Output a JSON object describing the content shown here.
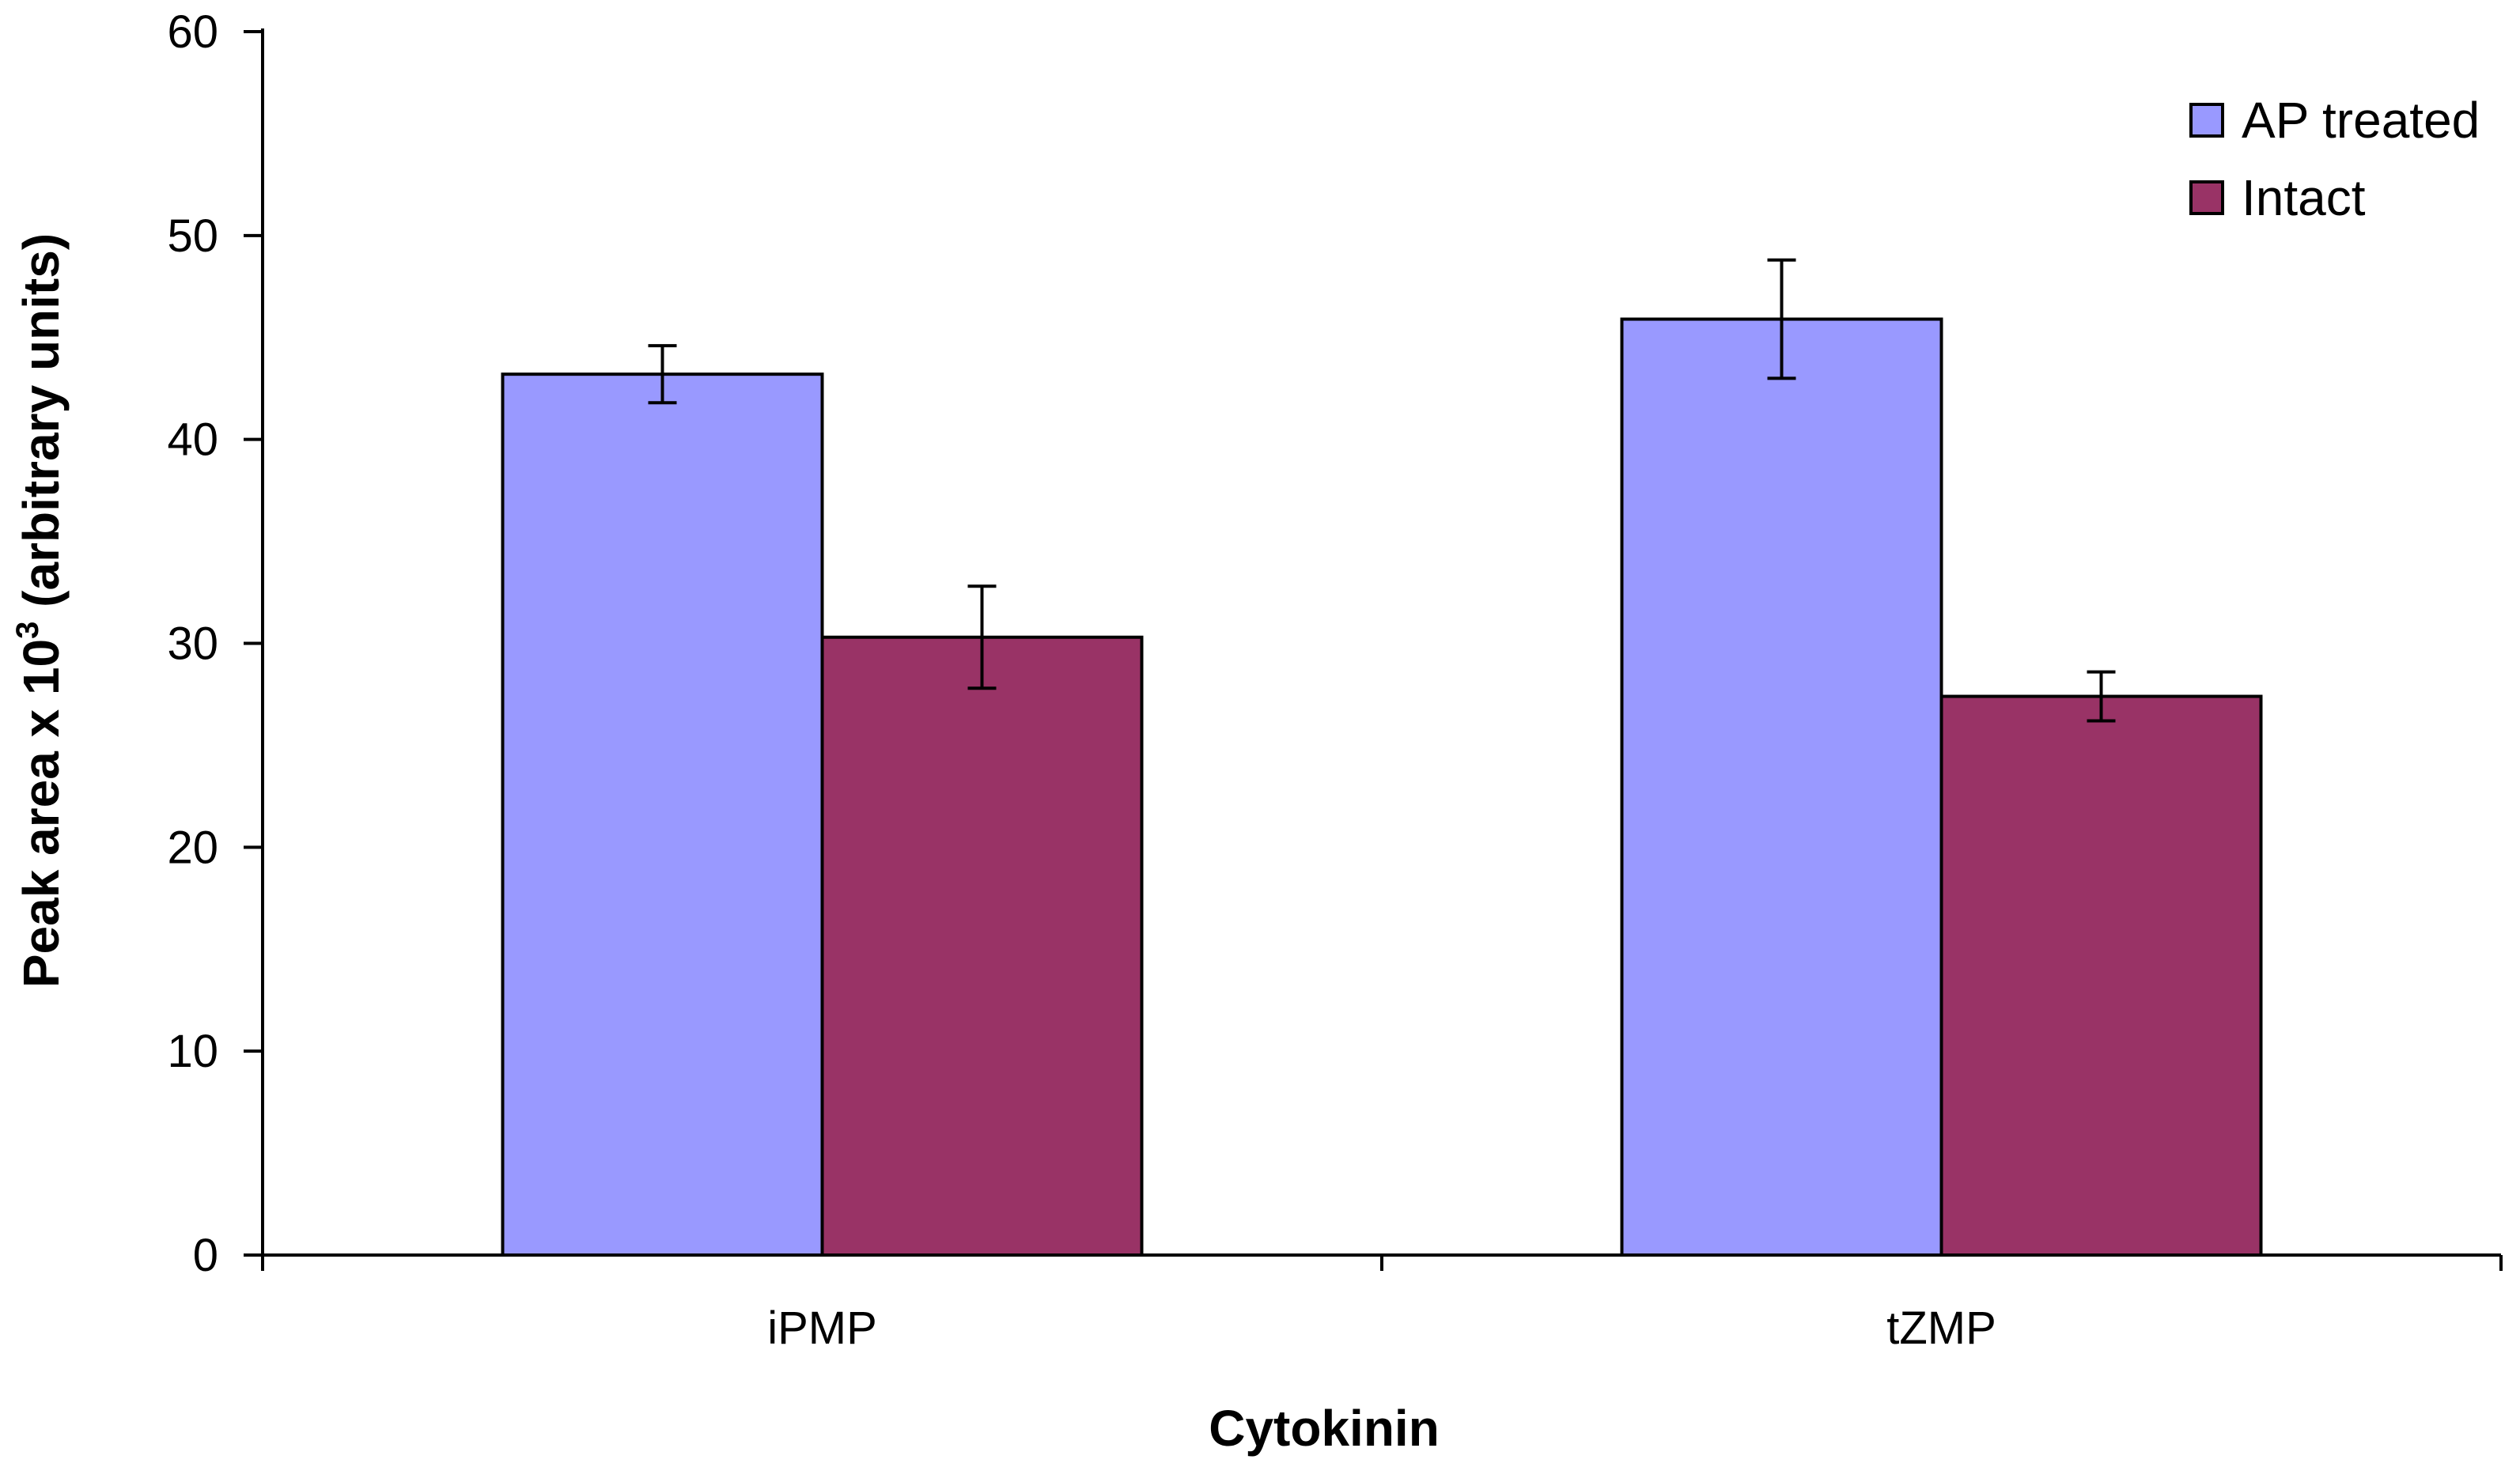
{
  "chart_data": {
    "type": "bar",
    "title": "",
    "xlabel": "Cytokinin",
    "ylabel_main": "Peak area x 10",
    "ylabel_sup": "3",
    "ylabel_tail": " (arbitrary units)",
    "ylim": [
      0,
      60
    ],
    "yticks": [
      0,
      10,
      20,
      30,
      40,
      50,
      60
    ],
    "ytick_labels": [
      "0",
      "10",
      "20",
      "30",
      "40",
      "50",
      "60"
    ],
    "grid": false,
    "legend_position": "top-right",
    "categories": [
      "iPMP",
      "tZMP"
    ],
    "series": [
      {
        "name": "AP treated",
        "color": "#9999ff",
        "values": [
          43.2,
          45.9
        ],
        "errors": [
          1.4,
          2.9
        ]
      },
      {
        "name": "Intact",
        "color": "#993366",
        "values": [
          30.3,
          27.4
        ],
        "errors": [
          2.5,
          1.2
        ]
      }
    ]
  }
}
